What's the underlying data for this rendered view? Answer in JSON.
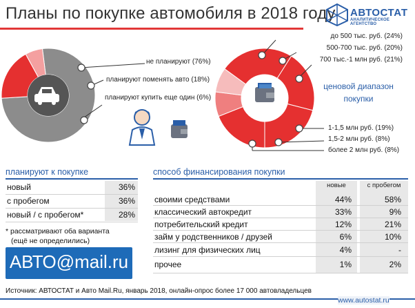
{
  "title": "Планы по покупке автомобиля в 2018 году",
  "logo": {
    "name": "АВТОСТАТ",
    "sub": "АНАЛИТИЧЕСКОЕ АГЕНТСТВО"
  },
  "left_pie_labels": {
    "l1": "не планируют (76%)",
    "l2": "планируют поменять авто (18%)",
    "l3": "планируют купить еще один (6%)"
  },
  "right_donut_labels": {
    "r1": "до 500 тыс. руб. (24%)",
    "r2": "500-700 тыс. руб. (20%)",
    "r3": "700 тыс.-1 млн руб. (21%)",
    "r4": "1-1,5 млн руб. (19%)",
    "r5": "1,5-2 млн руб. (8%)",
    "r6": "более 2 млн руб. (8%)"
  },
  "right_center_caption": "ценовой диапазон покупки",
  "chart_data": [
    {
      "type": "pie",
      "categories": [
        "не планируют",
        "планируют поменять авто",
        "планируют купить еще один"
      ],
      "values": [
        76,
        18,
        6
      ],
      "colors": [
        "#8c8c8c",
        "#e53030",
        "#f4a0a0"
      ]
    },
    {
      "type": "pie",
      "categories": [
        "до 500 тыс. руб.",
        "500-700 тыс. руб.",
        "700 тыс.-1 млн руб.",
        "1-1,5 млн руб.",
        "1,5-2 млн руб.",
        "более 2 млн руб."
      ],
      "values": [
        24,
        20,
        21,
        19,
        8,
        8
      ],
      "colors": [
        "#e53030",
        "#e53030",
        "#e53030",
        "#e53030",
        "#ef7f7f",
        "#f6bcbc"
      ]
    }
  ],
  "plan_table": {
    "heading": "планируют к покупке",
    "rows": [
      {
        "label": "новый",
        "value": "36%"
      },
      {
        "label": "с пробегом",
        "value": "36%"
      },
      {
        "label": "новый / с пробегом*",
        "value": "28%"
      }
    ],
    "note_line1": "* рассматривают оба варианта",
    "note_line2": "(ещё не определились)"
  },
  "finance_table": {
    "heading": "способ финансирования покупки",
    "col_new": "новые",
    "col_used": "с пробегом",
    "rows": [
      {
        "label": "своими средствами",
        "new": "44%",
        "used": "58%"
      },
      {
        "label": "классический автокредит",
        "new": "33%",
        "used": "9%"
      },
      {
        "label": "потребительский кредит",
        "new": "12%",
        "used": "21%"
      },
      {
        "label": "займ у родственников / друзей",
        "new": "6%",
        "used": "10%"
      },
      {
        "label": "лизинг для физических лиц",
        "new": "4%",
        "used": "-"
      },
      {
        "label": "прочее",
        "new": "1%",
        "used": "2%"
      }
    ]
  },
  "partner_logo": "АВТО@mail.ru",
  "footer": "Источник: АВТОСТАТ и Авто Mail.Ru, январь 2018, онлайн-опрос более 17 000 автовладельцев",
  "site": "www.autostat.ru"
}
